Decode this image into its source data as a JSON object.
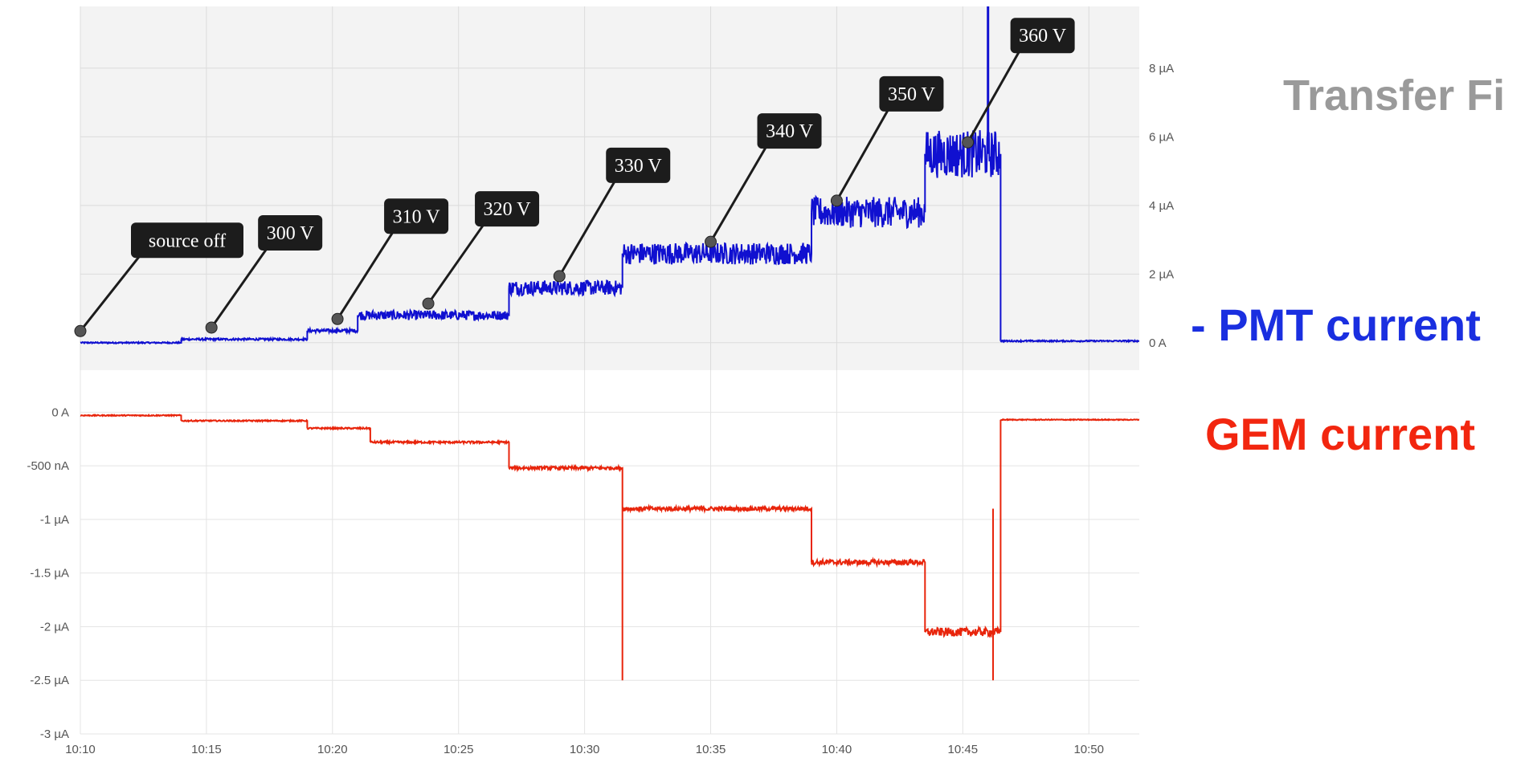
{
  "side_text": {
    "title": "Transfer Fi",
    "pmt_label": "- PMT current",
    "gem_label": "GEM current"
  },
  "chart_data": [
    {
      "type": "line",
      "title": "",
      "xlabel": "",
      "ylabel": "",
      "colors": {
        "series": "#1010d0",
        "panel_background": "#f3f3f3",
        "annotation_box": "#1c1c1c"
      },
      "grid": true,
      "legend": "none",
      "xlim": [
        "10:10",
        "10:52"
      ],
      "ylim": [
        -0.8,
        9.8
      ],
      "x_ticks": [
        "10:10",
        "10:15",
        "10:20",
        "10:25",
        "10:30",
        "10:35",
        "10:40",
        "10:45",
        "10:50"
      ],
      "y_ticks": [
        {
          "value": 0,
          "label": "0 A"
        },
        {
          "value": 2,
          "label": "2 µA"
        },
        {
          "value": 4,
          "label": "4 µA"
        },
        {
          "value": 6,
          "label": "6 µA"
        },
        {
          "value": 8,
          "label": "8 µA"
        }
      ],
      "series": [
        {
          "steps": [
            {
              "from": "10:10",
              "to": "10:14",
              "value": 0.0,
              "noise": 0.02
            },
            {
              "from": "10:14",
              "to": "10:19",
              "value": 0.1,
              "noise": 0.03
            },
            {
              "from": "10:19",
              "to": "10:21",
              "value": 0.35,
              "noise": 0.05
            },
            {
              "from": "10:21",
              "to": "10:27",
              "value": 0.8,
              "noise": 0.14
            },
            {
              "from": "10:27",
              "to": "10:31.5",
              "value": 1.6,
              "noise": 0.22
            },
            {
              "from": "10:31.5",
              "to": "10:39",
              "value": 2.6,
              "noise": 0.32
            },
            {
              "from": "10:39",
              "to": "10:43.5",
              "value": 3.8,
              "noise": 0.45
            },
            {
              "from": "10:43.5",
              "to": "10:46.5",
              "value": 5.5,
              "noise": 0.7
            },
            {
              "from": "10:46.5",
              "to": "10:52",
              "value": 0.05,
              "noise": 0.02
            }
          ],
          "spike": {
            "x": "10:46",
            "value": 9.8
          }
        }
      ],
      "annotations": [
        {
          "text": "source off",
          "x": "10:10"
        },
        {
          "text": "300 V",
          "x": "10:15.2"
        },
        {
          "text": "310 V",
          "x": "10:20.2"
        },
        {
          "text": "320 V",
          "x": "10:23.8"
        },
        {
          "text": "330 V",
          "x": "10:29"
        },
        {
          "text": "340 V",
          "x": "10:35"
        },
        {
          "text": "350 V",
          "x": "10:40"
        },
        {
          "text": "360 V",
          "x": "10:45.2"
        }
      ]
    },
    {
      "type": "line",
      "title": "",
      "xlabel": "",
      "ylabel": "",
      "colors": {
        "series": "#e8250c"
      },
      "grid": true,
      "legend": "none",
      "xlim": [
        "10:10",
        "10:52"
      ],
      "ylim": [
        -3,
        0.1
      ],
      "x_ticks": [
        "10:10",
        "10:15",
        "10:20",
        "10:25",
        "10:30",
        "10:35",
        "10:40",
        "10:45",
        "10:50"
      ],
      "y_ticks": [
        {
          "value": 0,
          "label": "0 A"
        },
        {
          "value": -0.5,
          "label": "-500 nA"
        },
        {
          "value": -1,
          "label": "-1 µA"
        },
        {
          "value": -1.5,
          "label": "-1.5 µA"
        },
        {
          "value": -2,
          "label": "-2 µA"
        },
        {
          "value": -2.5,
          "label": "-2.5 µA"
        },
        {
          "value": -3,
          "label": "-3 µA"
        }
      ],
      "series": [
        {
          "steps": [
            {
              "from": "10:10",
              "to": "10:14",
              "value": -0.03,
              "noise": 0.005
            },
            {
              "from": "10:14",
              "to": "10:19",
              "value": -0.08,
              "noise": 0.006
            },
            {
              "from": "10:19",
              "to": "10:21.5",
              "value": -0.15,
              "noise": 0.007
            },
            {
              "from": "10:21.5",
              "to": "10:27",
              "value": -0.28,
              "noise": 0.01
            },
            {
              "from": "10:27",
              "to": "10:31.5",
              "value": -0.52,
              "noise": 0.015
            },
            {
              "from": "10:31.5",
              "to": "10:39",
              "value": -0.9,
              "noise": 0.02
            },
            {
              "from": "10:39",
              "to": "10:43.5",
              "value": -1.4,
              "noise": 0.025
            },
            {
              "from": "10:43.5",
              "to": "10:46.5",
              "value": -2.05,
              "noise": 0.04
            },
            {
              "from": "10:46.5",
              "to": "10:52",
              "value": -0.07,
              "noise": 0.004
            }
          ],
          "spikes": [
            {
              "x": "10:31.5",
              "value": -2.5
            },
            {
              "x": "10:46.2",
              "value": -2.5
            }
          ]
        }
      ]
    }
  ]
}
